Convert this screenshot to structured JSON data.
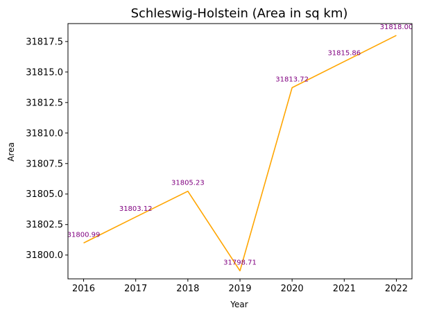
{
  "chart_data": {
    "type": "line",
    "title": "Schleswig-Holstein (Area in sq km)",
    "xlabel": "Year",
    "ylabel": "Area",
    "x": [
      2016,
      2017,
      2018,
      2019,
      2020,
      2021,
      2022
    ],
    "series": [
      {
        "values": [
          31800.99,
          31803.12,
          31805.23,
          31798.71,
          31813.72,
          31815.86,
          31818.0
        ],
        "data_labels": [
          "31800.99",
          "31803.12",
          "31805.23",
          "31798.71",
          "31813.72",
          "31815.86",
          "31818.00"
        ],
        "color": "#ffa500",
        "label_color": "#800080"
      }
    ],
    "xlim": [
      2015.7,
      2022.3
    ],
    "ylim": [
      31798.05,
      31818.97
    ],
    "xticks": [
      2016,
      2017,
      2018,
      2019,
      2020,
      2021,
      2022
    ],
    "yticks": [
      31800.0,
      31802.5,
      31805.0,
      31807.5,
      31810.0,
      31812.5,
      31815.0,
      31817.5
    ],
    "ytick_labels": [
      "31800.0",
      "31802.5",
      "31805.0",
      "31807.5",
      "31810.0",
      "31812.5",
      "31815.0",
      "31817.5"
    ],
    "grid": false,
    "legend": "none"
  }
}
